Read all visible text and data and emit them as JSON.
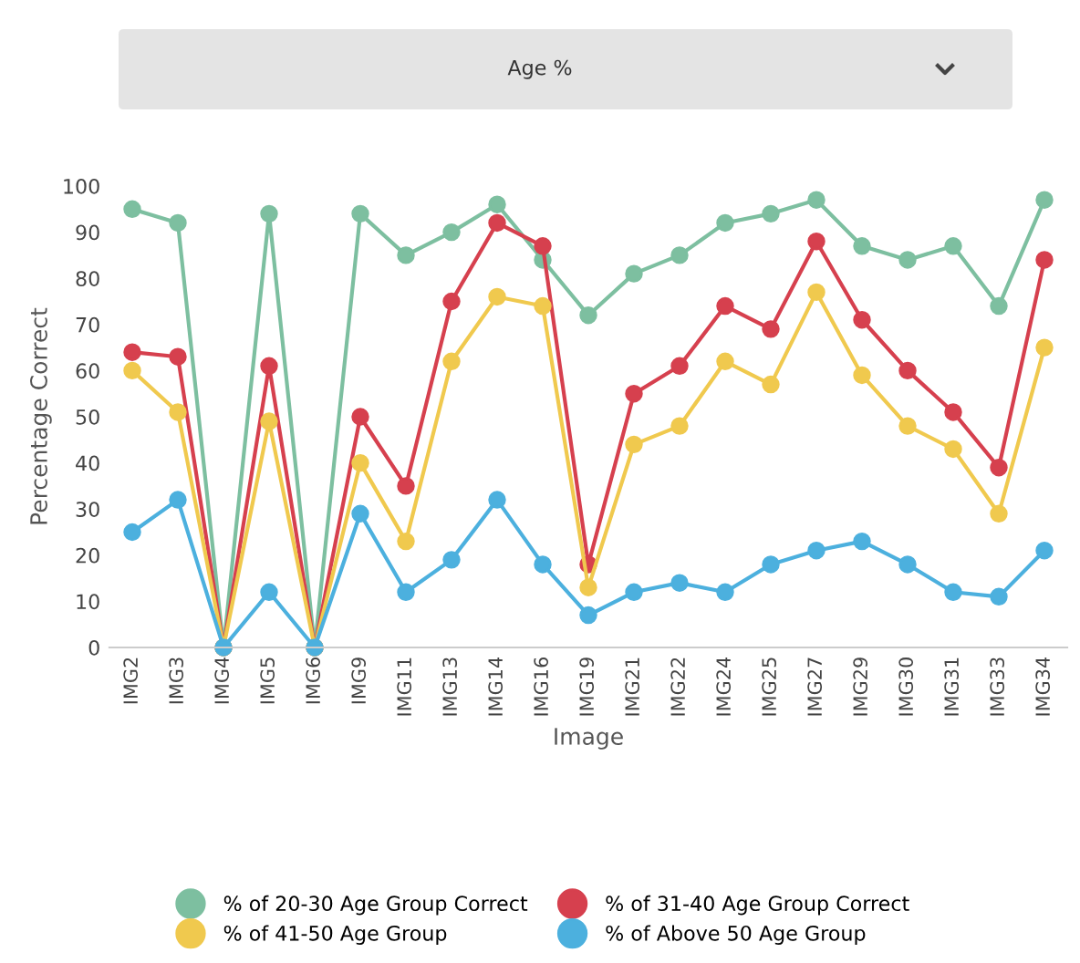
{
  "chart_data": {
    "type": "line",
    "title": "Age %",
    "xlabel": "Image",
    "ylabel": "Percentage Correct",
    "categories": [
      "IMG2",
      "IMG3",
      "IMG4",
      "IMG5",
      "IMG6",
      "IMG9",
      "IMG11",
      "IMG13",
      "IMG14",
      "IMG16",
      "IMG19",
      "IMG21",
      "IMG22",
      "IMG24",
      "IMG25",
      "IMG27",
      "IMG29",
      "IMG30",
      "IMG31",
      "IMG33",
      "IMG34"
    ],
    "series": [
      {
        "name": "% of 20-30 Age Group Correct",
        "color": "#7dbfa0",
        "values": [
          95,
          92,
          0,
          94,
          0,
          94,
          85,
          90,
          96,
          84,
          72,
          81,
          85,
          92,
          94,
          97,
          87,
          84,
          87,
          74,
          97
        ]
      },
      {
        "name": "% of 31-40 Age Group Correct",
        "color": "#d6404e",
        "values": [
          64,
          63,
          0,
          61,
          0,
          50,
          35,
          75,
          92,
          87,
          18,
          55,
          61,
          74,
          69,
          88,
          71,
          60,
          51,
          39,
          84
        ]
      },
      {
        "name": "% of 41-50 Age Group",
        "color": "#f0c94e",
        "values": [
          60,
          51,
          0,
          49,
          0,
          40,
          23,
          62,
          76,
          74,
          13,
          44,
          48,
          62,
          57,
          77,
          59,
          48,
          43,
          29,
          65
        ]
      },
      {
        "name": "% of Above 50 Age Group",
        "color": "#4cb0de",
        "values": [
          25,
          32,
          0,
          12,
          0,
          29,
          12,
          19,
          32,
          18,
          7,
          12,
          14,
          12,
          18,
          21,
          23,
          18,
          12,
          11,
          21
        ]
      }
    ],
    "ylim": [
      0,
      100
    ],
    "yticks": [
      0,
      10,
      20,
      30,
      40,
      50,
      60,
      70,
      80,
      90,
      100
    ],
    "grid": false,
    "legend": "bottom",
    "marker": "circle",
    "line_style": "solid"
  }
}
